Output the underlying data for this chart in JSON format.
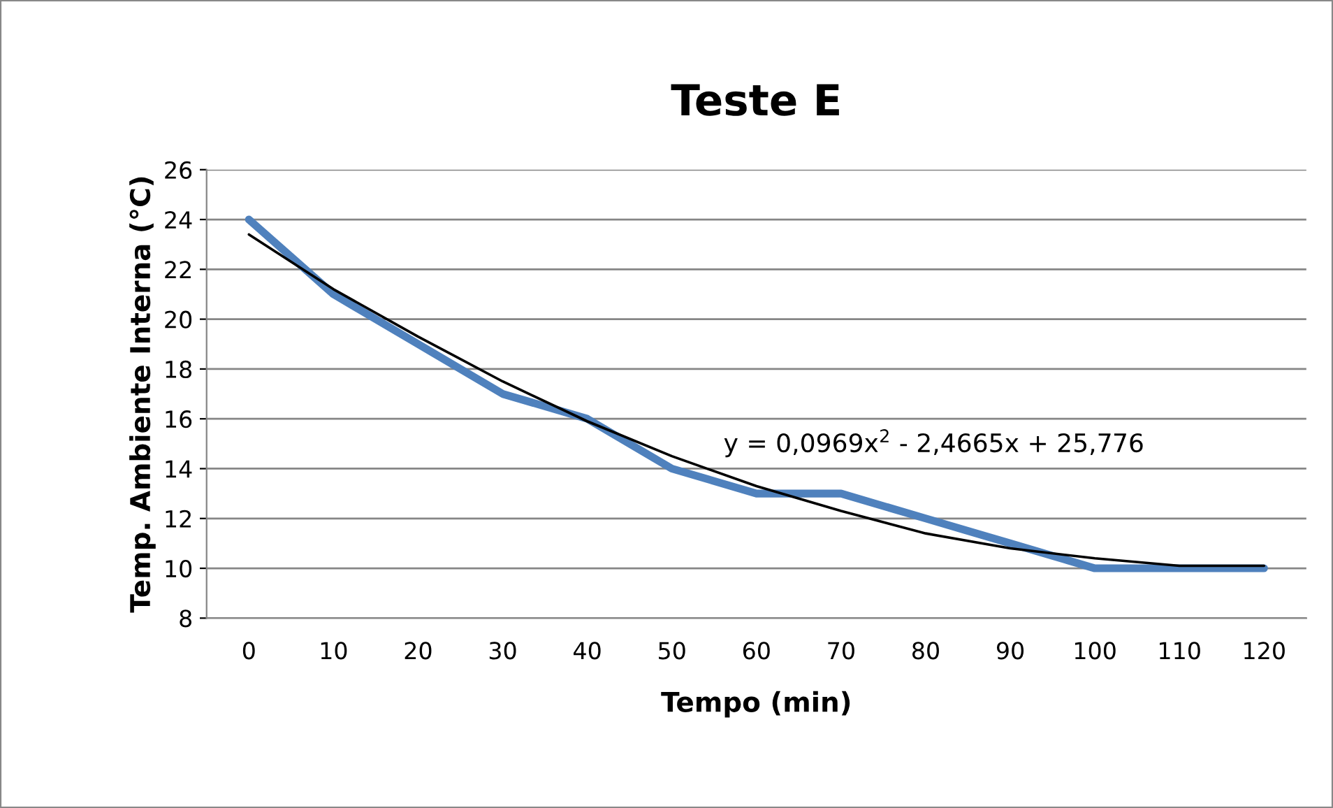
{
  "chart_data": {
    "type": "line",
    "title": "Teste E",
    "xlabel": "Tempo (min)",
    "ylabel": "Temp. Ambiente Interna (°C)",
    "categories": [
      "0",
      "10",
      "20",
      "30",
      "40",
      "50",
      "60",
      "70",
      "80",
      "90",
      "100",
      "110",
      "120"
    ],
    "series": [
      {
        "color": "#4f81bd",
        "values": [
          24,
          21,
          19,
          17,
          16,
          14,
          13,
          13,
          12,
          11,
          10,
          10,
          10
        ]
      },
      {
        "color": "#000000",
        "values": [
          23.4,
          21.2,
          19.3,
          17.5,
          15.9,
          14.5,
          13.3,
          12.3,
          11.4,
          10.8,
          10.4,
          10.1,
          10.1
        ]
      }
    ],
    "annotations": [
      "y = 0,0969x$^{2}$ - 2,4665x + 25,776"
    ],
    "ylim": [
      8,
      26
    ],
    "yticks": [
      8,
      10,
      12,
      14,
      16,
      18,
      20,
      22,
      24,
      26
    ],
    "grid": "y",
    "legend": false,
    "marker": "none",
    "line_style": "solid"
  }
}
